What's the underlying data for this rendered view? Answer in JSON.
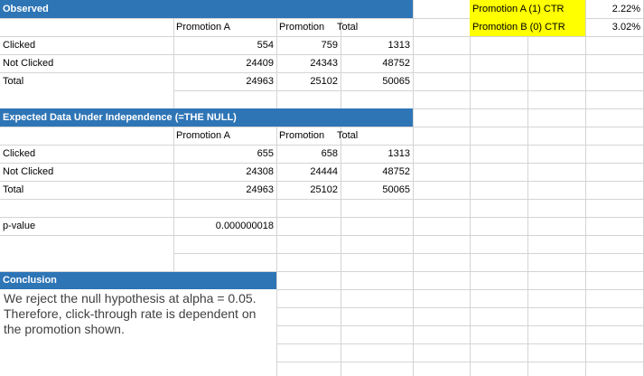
{
  "observed": {
    "title": "Observed",
    "col_headers": [
      "Promotion A",
      "Promotion",
      "Total"
    ],
    "rows": [
      {
        "label": "Clicked",
        "a": "554",
        "b": "759",
        "total": "1313"
      },
      {
        "label": "Not Clicked",
        "a": "24409",
        "b": "24343",
        "total": "48752"
      },
      {
        "label": "Total",
        "a": "24963",
        "b": "25102",
        "total": "50065"
      }
    ]
  },
  "expected": {
    "title": "Expected Data Under Independence (=THE NULL)",
    "col_headers": [
      "Promotion A",
      "Promotion",
      "Total"
    ],
    "rows": [
      {
        "label": "Clicked",
        "a": "655",
        "b": "658",
        "total": "1313"
      },
      {
        "label": "Not Clicked",
        "a": "24308",
        "b": "24444",
        "total": "48752"
      },
      {
        "label": "Total",
        "a": "24963",
        "b": "25102",
        "total": "50065"
      }
    ]
  },
  "pvalue": {
    "label": "p-value",
    "value": "0.000000018"
  },
  "conclusion": {
    "title": "Conclusion",
    "text": "We reject the null hypothesis at alpha = 0.05. Therefore, click-through rate is dependent on the promotion shown."
  },
  "ctr": [
    {
      "label": "Promotion A (1) CTR",
      "value": "2.22%"
    },
    {
      "label": "Promotion B (0) CTR",
      "value": "3.02%"
    }
  ],
  "colors": {
    "header_blue": "#2e75b6",
    "highlight_yellow": "#ffff00",
    "grid": "#d4d4d4"
  }
}
